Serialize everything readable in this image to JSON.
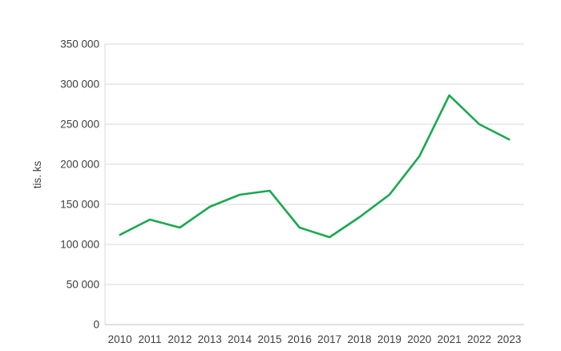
{
  "colors": {
    "line": "#1aa84f",
    "grid": "#d9d9d9",
    "axis_left": "#d9d9d9",
    "axis_bottom": "#bfbfbf",
    "tick_text": "#404040",
    "background": "#ffffff"
  },
  "chart_data": {
    "type": "line",
    "title": "",
    "xlabel": "",
    "ylabel": "tis. ks",
    "categories": [
      "2010",
      "2011",
      "2012",
      "2013",
      "2014",
      "2015",
      "2016",
      "2017",
      "2018",
      "2019",
      "2020",
      "2021",
      "2022",
      "2023"
    ],
    "series": [
      {
        "name": "",
        "values": [
          112000,
          131000,
          121000,
          147000,
          162000,
          167000,
          121000,
          109000,
          134000,
          162000,
          210000,
          286000,
          250000,
          231000
        ]
      }
    ],
    "ylim": [
      0,
      350000
    ],
    "ytick_step": 50000,
    "ytick_labels": [
      "0",
      "50 000",
      "100 000",
      "150 000",
      "200 000",
      "250 000",
      "300 000",
      "350 000"
    ],
    "grid": true,
    "legend": "none"
  }
}
